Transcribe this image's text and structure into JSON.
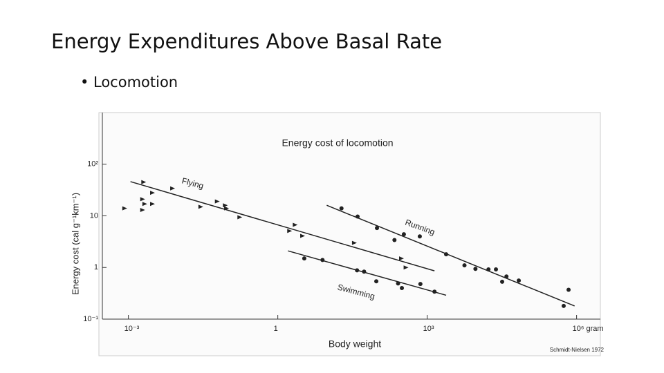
{
  "slide": {
    "title": "Energy Expenditures Above Basal Rate",
    "bullet": "Locomotion",
    "source": "Schmidt-Nielsen 1972"
  },
  "chart_data": {
    "type": "scatter",
    "title": "Energy cost of locomotion",
    "x_label": "Body weight",
    "y_label": "Energy cost (cal g⁻¹km⁻¹)",
    "log_x": true,
    "log_y": true,
    "grid": false,
    "xlim": [
      0.0003,
      3000000
    ],
    "ylim": [
      0.1,
      1000
    ],
    "xticks": [
      {
        "value": 0.001,
        "label": "10⁻³"
      },
      1,
      {
        "value": 1000,
        "label": "10³"
      },
      {
        "value": 1000000,
        "label": "10⁶ gram"
      }
    ],
    "yticks": [
      {
        "value": 0.1,
        "label": "10⁻¹"
      },
      1,
      10,
      {
        "value": 100,
        "label": "10²"
      }
    ],
    "series": [
      {
        "name": "Flying",
        "color": "#222222",
        "marker": "triangle",
        "x": [
          0.00083,
          0.002,
          0.0019,
          0.0021,
          0.003,
          0.0019,
          0.003,
          0.0076,
          0.028,
          0.06,
          0.087,
          0.092,
          0.17,
          1.7,
          2.2,
          3.1,
          34,
          300,
          370
        ],
        "values": [
          14,
          45,
          21,
          17,
          28,
          13,
          17,
          34,
          15,
          19,
          16,
          14,
          9.4,
          5.1,
          6.7,
          4.1,
          3.0,
          1.5,
          1.0
        ],
        "trend": {
          "x": [
            0.0011,
            1400
          ],
          "values": [
            46,
            0.86
          ]
        }
      },
      {
        "name": "Running",
        "color": "#222222",
        "marker": "circle",
        "x": [
          19,
          40,
          98,
          220,
          340,
          710,
          2400,
          5600,
          9300,
          17000,
          24000,
          32000,
          39000,
          69000,
          550000,
          690000
        ],
        "values": [
          14,
          9.7,
          5.8,
          3.4,
          4.4,
          4.0,
          1.8,
          1.1,
          0.94,
          0.92,
          0.92,
          0.53,
          0.67,
          0.56,
          0.18,
          0.37
        ],
        "trend": {
          "x": [
            9.6,
            910000
          ],
          "values": [
            16,
            0.18
          ]
        }
      },
      {
        "name": "Swimming",
        "color": "#222222",
        "marker": "circle",
        "x": [
          3.4,
          7.9,
          39,
          54,
          95,
          260,
          310,
          730,
          1400
        ],
        "values": [
          1.5,
          1.4,
          0.88,
          0.83,
          0.54,
          0.49,
          0.4,
          0.48,
          0.34
        ],
        "trend": {
          "x": [
            1.6,
            2400
          ],
          "values": [
            2.1,
            0.29
          ]
        }
      }
    ]
  }
}
